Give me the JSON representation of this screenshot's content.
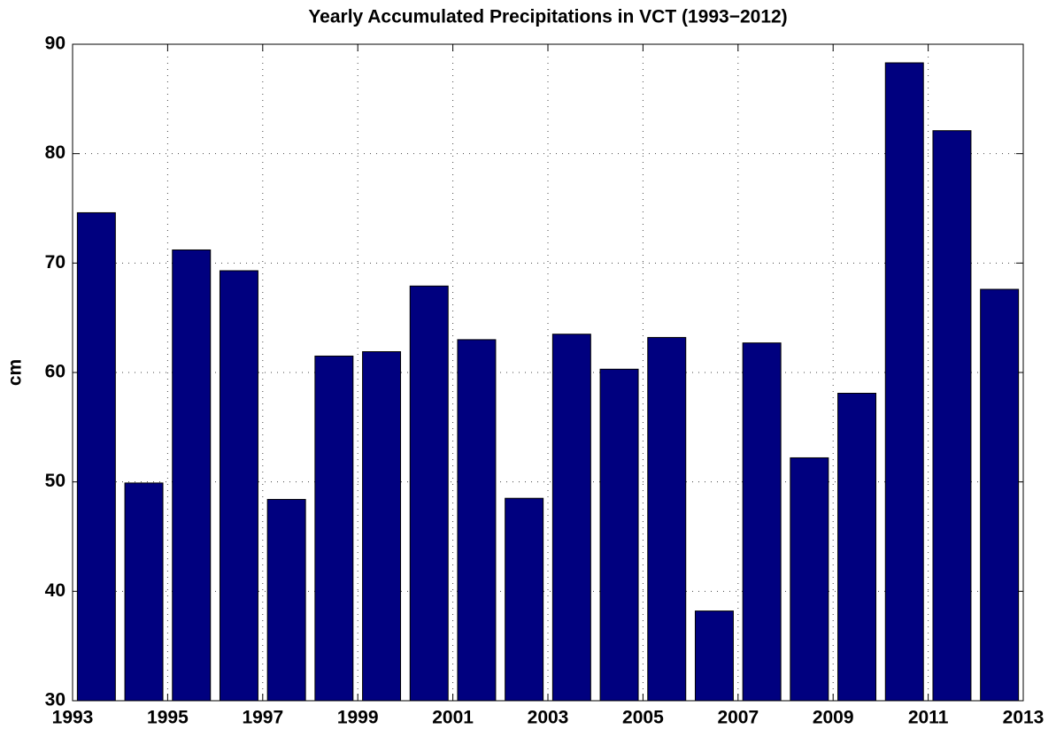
{
  "chart_data": {
    "type": "bar",
    "title": "Yearly Accumulated Precipitations in VCT (1993−2012)",
    "y_label": "cm",
    "x": [
      1993.5,
      1994.5,
      1995.5,
      1996.5,
      1997.5,
      1998.5,
      1999.5,
      2000.5,
      2001.5,
      2002.5,
      2003.5,
      2004.5,
      2005.5,
      2006.5,
      2007.5,
      2008.5,
      2009.5,
      2010.5,
      2011.5,
      2012.5
    ],
    "values": [
      74.6,
      49.9,
      71.2,
      69.3,
      48.4,
      61.5,
      61.9,
      67.9,
      63.0,
      48.5,
      63.5,
      60.3,
      63.2,
      38.2,
      62.7,
      52.2,
      58.1,
      88.3,
      82.1,
      67.6
    ],
    "color": "#00007f",
    "xlim": [
      1993,
      2013
    ],
    "xticks": [
      1993,
      1995,
      1997,
      1999,
      2001,
      2003,
      2005,
      2007,
      2009,
      2011,
      2013
    ],
    "ylim": [
      30,
      90
    ],
    "yticks": [
      30,
      40,
      50,
      60,
      70,
      80,
      90
    ],
    "grid": true
  }
}
